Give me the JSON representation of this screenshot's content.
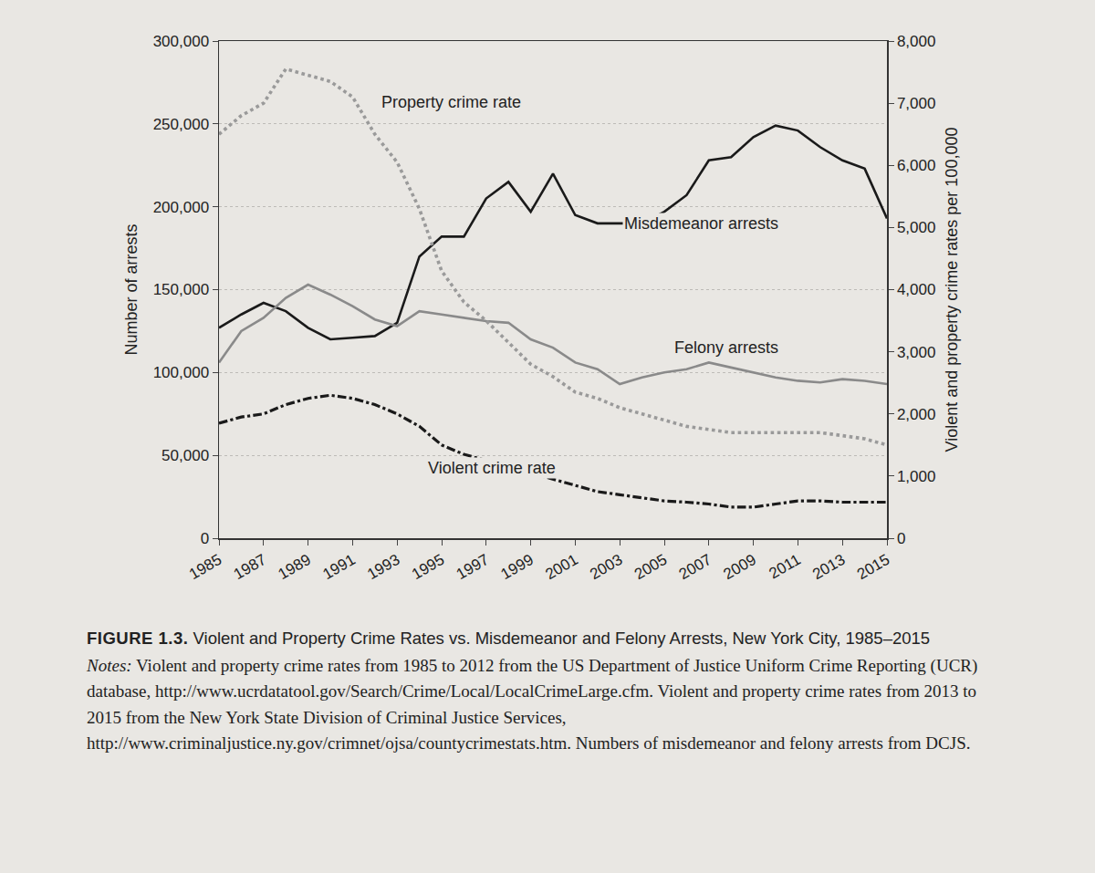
{
  "chart_data": {
    "type": "line",
    "x_label_rotation_note": null,
    "x": [
      1985,
      1986,
      1987,
      1988,
      1989,
      1990,
      1991,
      1992,
      1993,
      1994,
      1995,
      1996,
      1997,
      1998,
      1999,
      2000,
      2001,
      2002,
      2003,
      2004,
      2005,
      2006,
      2007,
      2008,
      2009,
      2010,
      2011,
      2012,
      2013,
      2014,
      2015
    ],
    "xlim": [
      1985,
      2015
    ],
    "xticks": [
      1985,
      1987,
      1989,
      1991,
      1993,
      1995,
      1997,
      1999,
      2001,
      2003,
      2005,
      2007,
      2009,
      2011,
      2013,
      2015
    ],
    "y_label": "Number of arrests",
    "ylim": [
      0,
      300000
    ],
    "yticks": [
      0,
      {
        "value": 50000,
        "label": "50,000"
      },
      {
        "value": 100000,
        "label": "100,000"
      },
      {
        "value": 150000,
        "label": "150,000"
      },
      {
        "value": 200000,
        "label": "200,000"
      },
      {
        "value": 250000,
        "label": "250,000"
      },
      {
        "value": 300000,
        "label": "300,000"
      }
    ],
    "y2_label": "Violent and property crime rates per 100,000",
    "y2lim": [
      0,
      8000
    ],
    "y2ticks": [
      0,
      {
        "value": 1000,
        "label": "1,000"
      },
      {
        "value": 2000,
        "label": "2,000"
      },
      {
        "value": 3000,
        "label": "3,000"
      },
      {
        "value": 4000,
        "label": "4,000"
      },
      {
        "value": 5000,
        "label": "5,000"
      },
      {
        "value": 6000,
        "label": "6,000"
      },
      {
        "value": 7000,
        "label": "7,000"
      },
      {
        "value": 8000,
        "label": "8,000"
      }
    ],
    "grid": true,
    "series": [
      {
        "name": "Property crime rate",
        "color": "#9a9a9a",
        "line_style": "dotted",
        "axis": "y2",
        "values": [
          6500,
          6800,
          7000,
          7550,
          7450,
          7350,
          7100,
          6500,
          6050,
          5300,
          4300,
          3800,
          3500,
          3150,
          2800,
          2600,
          2350,
          2250,
          2100,
          2000,
          1900,
          1800,
          1750,
          1700,
          1700,
          1700,
          1700,
          1700,
          1650,
          1600,
          1500
        ]
      },
      {
        "name": "Misdemeanor arrests",
        "color": "#1a1a1a",
        "line_style": "solid",
        "values": [
          127000,
          135000,
          142000,
          137000,
          127000,
          120000,
          121000,
          122000,
          130000,
          170000,
          182000,
          182000,
          205000,
          215000,
          197000,
          220000,
          195000,
          190000,
          190000,
          190000,
          197000,
          207000,
          228000,
          230000,
          242000,
          249000,
          246000,
          236000,
          228000,
          223000,
          193000
        ]
      },
      {
        "name": "Felony arrests",
        "color": "#8a8a8a",
        "line_style": "solid",
        "values": [
          106000,
          125000,
          133000,
          145000,
          153000,
          147000,
          140000,
          132000,
          128000,
          137000,
          135000,
          133000,
          131000,
          130000,
          120000,
          115000,
          106000,
          102000,
          93000,
          97000,
          100000,
          102000,
          106000,
          103000,
          100000,
          97000,
          95000,
          94000,
          96000,
          95000,
          93000
        ]
      },
      {
        "name": "Violent crime rate",
        "color": "#1a1a1a",
        "line_style": "dashdot",
        "axis": "y2",
        "values": [
          1850,
          1950,
          2000,
          2150,
          2250,
          2300,
          2250,
          2150,
          2000,
          1800,
          1500,
          1350,
          1250,
          1150,
          1050,
          950,
          850,
          750,
          700,
          650,
          600,
          580,
          550,
          500,
          500,
          550,
          600,
          600,
          580,
          580,
          580
        ]
      }
    ]
  },
  "caption": {
    "label": "FIGURE 1.3.",
    "title": "Violent and Property Crime Rates vs. Misdemeanor and Felony Arrests, New York City, 1985–2015",
    "notes_label": "Notes:",
    "notes": "Violent and property crime rates from 1985 to 2012 from the US Department of Justice Uniform Crime Reporting (UCR) database, http://www.ucrdatatool.gov/Search/Crime/Local/LocalCrimeLarge.cfm. Violent and property crime rates from 2013 to 2015 from the New York State Division of Criminal Justice Services, http://www.criminaljustice.ny.gov/crimnet/ojsa/countycrimestats.htm. Numbers of misdemeanor and felony arrests from DCJS."
  }
}
